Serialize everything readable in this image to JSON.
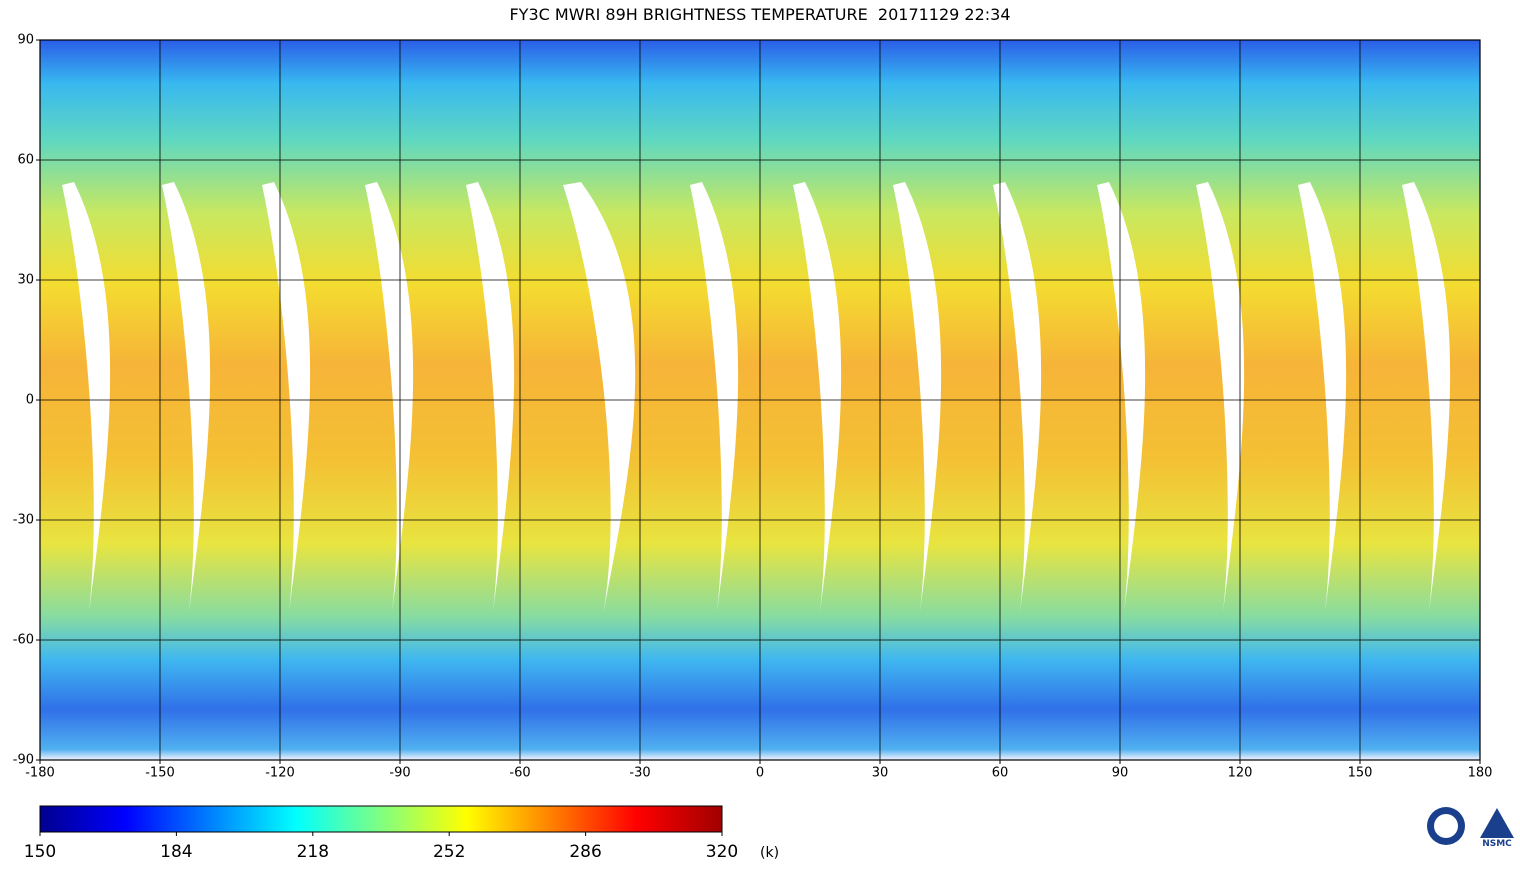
{
  "map": {
    "title": "FY3C MWRI 89H BRIGHTNESS TEMPERATURE  20171129 22:34",
    "xlim": [
      -180,
      180
    ],
    "ylim": [
      -90,
      90
    ],
    "xticks": [
      -180,
      -150,
      -120,
      -90,
      -60,
      -30,
      0,
      30,
      60,
      90,
      120,
      150,
      180
    ],
    "yticks": [
      90,
      60,
      30,
      0,
      -30,
      -60,
      -90
    ],
    "grid": true
  },
  "colorbar": {
    "ticks": [
      150,
      184,
      218,
      252,
      286,
      320
    ],
    "unit": "(k)",
    "colors": [
      "#00008f",
      "#0000ff",
      "#0080ff",
      "#00ffff",
      "#80ff80",
      "#ffff00",
      "#ff8000",
      "#ff0000",
      "#a00000"
    ]
  },
  "logo": {
    "label": "NSMC"
  }
}
